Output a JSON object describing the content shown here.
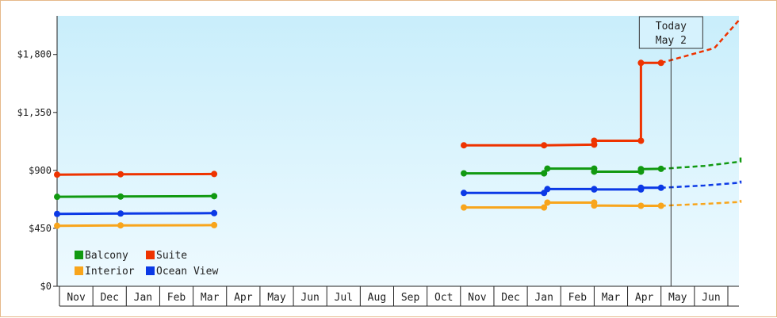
{
  "chart_data": {
    "type": "line",
    "title": "",
    "xlabel": "",
    "ylabel": "",
    "ylim": [
      0,
      2100
    ],
    "y_ticks": [
      0,
      450,
      900,
      1350,
      1800
    ],
    "y_tick_labels": [
      "$0",
      "$450",
      "$900",
      "$1,350",
      "$1,800"
    ],
    "x_tick_labels": [
      "Nov",
      "Dec",
      "Jan",
      "Feb",
      "Mar",
      "Apr",
      "May",
      "Jun",
      "Jul",
      "Aug",
      "Sep",
      "Oct",
      "Nov",
      "Dec",
      "Jan",
      "Feb",
      "Mar",
      "Apr",
      "May",
      "Jun"
    ],
    "x_range": [
      0,
      20.3
    ],
    "grid": false,
    "legend_position": "bottom-left",
    "today_marker": {
      "x": 18.3,
      "line1": "Today",
      "line2": "May 2"
    },
    "background": {
      "top": "#c9eefb",
      "bottom": "#eefaff"
    },
    "series": [
      {
        "name": "Balcony",
        "color": "#119911",
        "segments": [
          [
            [
              0,
              695
            ],
            [
              1.9,
              697
            ],
            [
              4.7,
              700
            ]
          ],
          [
            [
              0.1,
              877
            ],
            [
              2.5,
              877
            ],
            [
              2.5,
              878
            ],
            [
              2.6,
              914
            ],
            [
              4.0,
              914
            ],
            [
              4.0,
              890
            ],
            [
              5.4,
              890
            ],
            [
              5.4,
              910
            ],
            [
              6.0,
              912
            ]
          ]
        ],
        "forecast": [
          [
            6.0,
            912
          ],
          [
            7.3,
            935
          ],
          [
            8.6,
            968
          ],
          [
            9.8,
            1000
          ]
        ]
      },
      {
        "name": "Suite",
        "color": "#ee3300",
        "segments": [
          [
            [
              0,
              867
            ],
            [
              1.9,
              870
            ],
            [
              4.7,
              872
            ]
          ],
          [
            [
              0.1,
              1095
            ],
            [
              2.5,
              1095
            ],
            [
              4.0,
              1100
            ],
            [
              4.0,
              1130
            ],
            [
              5.4,
              1130
            ],
            [
              5.4,
              1735
            ],
            [
              6.0,
              1735
            ]
          ]
        ],
        "forecast": [
          [
            6.0,
            1735
          ],
          [
            7.6,
            1850
          ],
          [
            9.8,
            2080
          ]
        ]
      },
      {
        "name": "Interior",
        "color": "#f8a51c",
        "segments": [
          [
            [
              0,
              470
            ],
            [
              1.9,
              473
            ],
            [
              4.7,
              475
            ]
          ],
          [
            [
              0.1,
              612
            ],
            [
              2.5,
              612
            ],
            [
              2.6,
              650
            ],
            [
              4.0,
              650
            ],
            [
              4.0,
              627
            ],
            [
              5.4,
              625
            ],
            [
              6.0,
              625
            ]
          ]
        ],
        "forecast": [
          [
            6.0,
            625
          ],
          [
            7.3,
            640
          ],
          [
            8.6,
            655
          ],
          [
            9.8,
            670
          ]
        ]
      },
      {
        "name": "Ocean View",
        "color": "#0b39e6",
        "segments": [
          [
            [
              0,
              562
            ],
            [
              1.9,
              565
            ],
            [
              4.7,
              568
            ]
          ],
          [
            [
              0.1,
              725
            ],
            [
              2.5,
              725
            ],
            [
              2.6,
              755
            ],
            [
              4.0,
              755
            ],
            [
              4.0,
              752
            ],
            [
              5.4,
              752
            ],
            [
              5.4,
              765
            ],
            [
              6.0,
              765
            ]
          ]
        ],
        "forecast": [
          [
            6.0,
            765
          ],
          [
            7.3,
            783
          ],
          [
            8.6,
            805
          ],
          [
            9.8,
            820
          ]
        ]
      }
    ]
  }
}
